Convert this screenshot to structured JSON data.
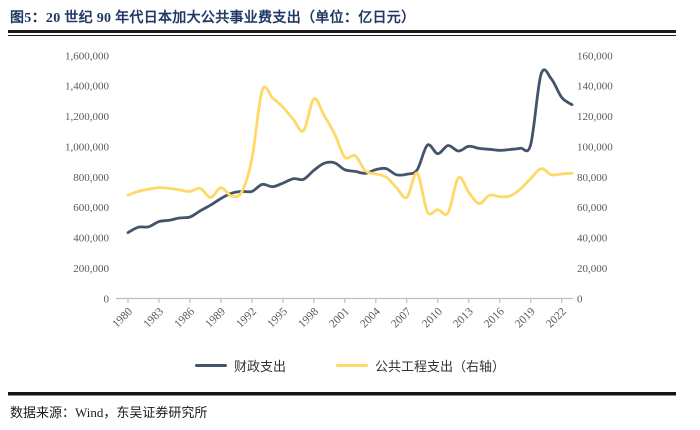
{
  "header": {
    "title": "图5：20 世纪 90 年代日本加大公共事业费支出（单位：亿日元）"
  },
  "footer": {
    "source": "数据来源：Wind，东吴证券研究所"
  },
  "colors": {
    "title_navy": "#1F3864",
    "fiscal_line": "#44546A",
    "public_works_line": "#FFD966",
    "axis_text": "#595959",
    "axis_line": "#BFBFBF"
  },
  "chart_data": {
    "type": "line",
    "title": "20 世纪 90 年代日本加大公共事业费支出",
    "unit": "亿日元",
    "grid": false,
    "legend_position": "bottom",
    "x": [
      1980,
      1981,
      1982,
      1983,
      1984,
      1985,
      1986,
      1987,
      1988,
      1989,
      1990,
      1991,
      1992,
      1993,
      1994,
      1995,
      1996,
      1997,
      1998,
      1999,
      2000,
      2001,
      2002,
      2003,
      2004,
      2005,
      2006,
      2007,
      2008,
      2009,
      2010,
      2011,
      2012,
      2013,
      2014,
      2015,
      2016,
      2017,
      2018,
      2019,
      2020,
      2021,
      2022,
      2023
    ],
    "x_tick_labels": [
      "1980",
      "1983",
      "1986",
      "1989",
      "1992",
      "1995",
      "1998",
      "2001",
      "2004",
      "2007",
      "2010",
      "2013",
      "2016",
      "2019",
      "2022"
    ],
    "left_axis": {
      "min": 0,
      "max": 1600000,
      "step": 200000,
      "tick_labels": [
        "0",
        "200,000",
        "400,000",
        "600,000",
        "800,000",
        "1,000,000",
        "1,200,000",
        "1,400,000",
        "1,600,000"
      ]
    },
    "right_axis": {
      "min": 0,
      "max": 160000,
      "step": 20000,
      "tick_labels": [
        "0",
        "20,000",
        "40,000",
        "60,000",
        "80,000",
        "100,000",
        "120,000",
        "140,000",
        "160,000"
      ]
    },
    "series": [
      {
        "name": "财政支出",
        "axis": "left",
        "color": "#44546A",
        "values": [
          434050,
          469211,
          472245,
          506353,
          514806,
          530045,
          536404,
          577311,
          614711,
          658589,
          692687,
          705472,
          704974,
          751025,
          736136,
          759385,
          788479,
          784703,
          843918,
          890374,
          893210,
          848111,
          836743,
          824160,
          848968,
          855196,
          814455,
          818426,
          846974,
          1009734,
          953123,
          1007154,
          970872,
          1001889,
          988135,
          982303,
          975418,
          981156,
          989747,
          1013665,
          1475974,
          1446495,
          1323855,
          1275804
        ]
      },
      {
        "name": "公共工程支出（右轴）",
        "axis": "right",
        "color": "#FFD966",
        "values": [
          68000,
          70500,
          72000,
          73000,
          72500,
          71500,
          70500,
          72500,
          66500,
          73000,
          67500,
          70000,
          92000,
          137000,
          132000,
          126000,
          118000,
          110500,
          131500,
          120500,
          108500,
          93000,
          94000,
          84000,
          82000,
          80000,
          73000,
          66500,
          82500,
          57000,
          58500,
          56500,
          79500,
          70000,
          62500,
          68000,
          67000,
          67500,
          72000,
          79000,
          85500,
          81500,
          82000,
          82500
        ]
      }
    ]
  }
}
